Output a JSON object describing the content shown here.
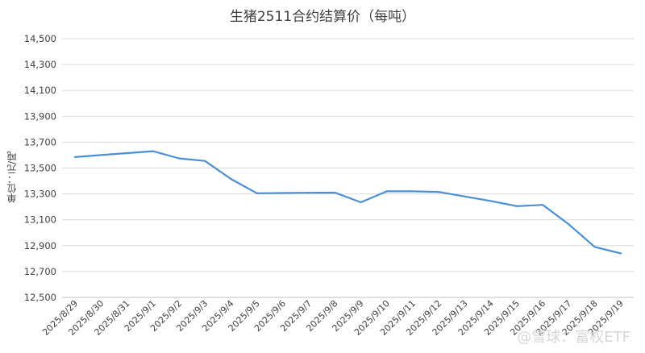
{
  "watermark": "@雪球：富权ETF",
  "chart_data": {
    "type": "line",
    "title": "生猪2511合约结算价（每吨）",
    "ylabel": "单位：元/吨",
    "xlabel": "",
    "ylim": [
      12500,
      14500
    ],
    "yticks": [
      12500,
      12700,
      12900,
      13100,
      13300,
      13500,
      13700,
      13900,
      14100,
      14300,
      14500
    ],
    "ytick_labels": [
      "12,500",
      "12,700",
      "12,900",
      "13,100",
      "13,300",
      "13,500",
      "13,700",
      "13,900",
      "14,100",
      "14,300",
      "14,500"
    ],
    "grid": true,
    "legend": "none",
    "line_color": "#4a8fd6",
    "categories": [
      "2025/8/29",
      "2025/8/30",
      "2025/8/31",
      "2025/9/1",
      "2025/9/2",
      "2025/9/3",
      "2025/9/4",
      "2025/9/5",
      "2025/9/6",
      "2025/9/7",
      "2025/9/8",
      "2025/9/9",
      "2025/9/10",
      "2025/9/11",
      "2025/9/12",
      "2025/9/13",
      "2025/9/14",
      "2025/9/15",
      "2025/9/16",
      "2025/9/17",
      "2025/9/18",
      "2025/9/19"
    ],
    "values": [
      13585,
      13600,
      13615,
      13630,
      13575,
      13555,
      13415,
      13305,
      13307,
      13309,
      13310,
      13235,
      13320,
      13320,
      13315,
      13280,
      13245,
      13205,
      13215,
      13065,
      12890,
      12840
    ]
  }
}
